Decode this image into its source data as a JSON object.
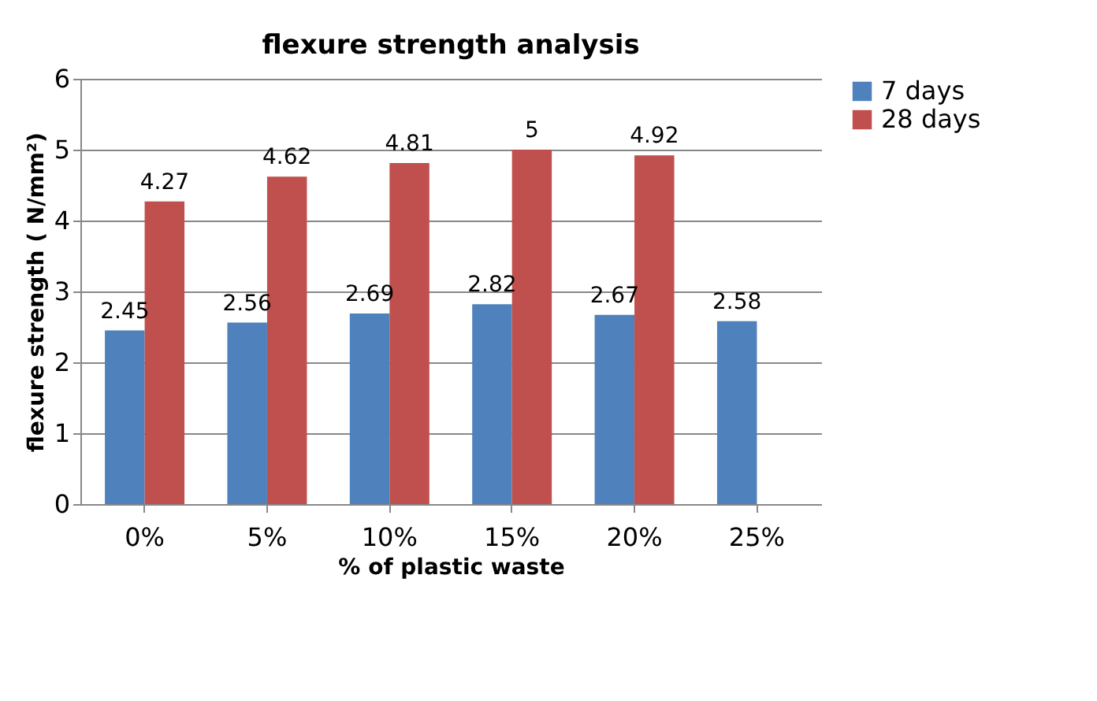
{
  "chart_data": {
    "type": "bar",
    "title": "flexure strength analysis",
    "xlabel": "% of plastic waste",
    "ylabel": "flexure strength ( N/mm²)",
    "categories": [
      "0%",
      "5%",
      "10%",
      "15%",
      "20%",
      "25%"
    ],
    "series": [
      {
        "name": "7 days",
        "color": "#4f81bd",
        "values": [
          2.45,
          2.56,
          2.69,
          2.82,
          2.67,
          2.58
        ]
      },
      {
        "name": "28 days",
        "color": "#c0504d",
        "values": [
          4.27,
          4.62,
          4.81,
          5,
          4.92,
          null
        ]
      }
    ],
    "ylim": [
      0,
      6
    ],
    "yticks": [
      0,
      1,
      2,
      3,
      4,
      5,
      6
    ],
    "grid": "y",
    "legend": "right",
    "data_labels": true
  }
}
